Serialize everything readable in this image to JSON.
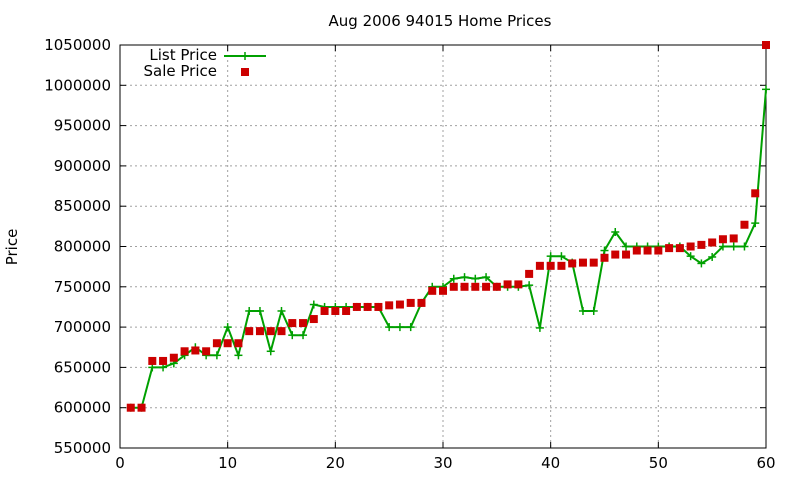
{
  "chart_data": {
    "type": "line",
    "title": "Aug 2006 94015 Home Prices",
    "xlabel": "",
    "ylabel": "Price",
    "xlim": [
      0,
      60
    ],
    "ylim": [
      550000,
      1050000
    ],
    "x_ticks": [
      0,
      10,
      20,
      30,
      40,
      50,
      60
    ],
    "y_ticks": [
      550000,
      600000,
      650000,
      700000,
      750000,
      800000,
      850000,
      900000,
      950000,
      1000000,
      1050000
    ],
    "grid": true,
    "legend_position": "top-left",
    "series": [
      {
        "name": "List Price",
        "style": "line-points",
        "marker": "plus",
        "color": "#00a000",
        "x": [
          1,
          2,
          3,
          4,
          5,
          6,
          7,
          8,
          9,
          10,
          11,
          12,
          13,
          14,
          15,
          16,
          17,
          18,
          19,
          20,
          21,
          22,
          23,
          24,
          25,
          26,
          27,
          28,
          29,
          30,
          31,
          32,
          33,
          34,
          35,
          36,
          37,
          38,
          39,
          40,
          41,
          42,
          43,
          44,
          45,
          46,
          47,
          48,
          49,
          50,
          51,
          52,
          53,
          54,
          55,
          56,
          57,
          58,
          59,
          60
        ],
        "y": [
          600000,
          600000,
          650000,
          650000,
          655000,
          665000,
          675000,
          665000,
          665000,
          700000,
          665000,
          720000,
          720000,
          670000,
          720000,
          690000,
          690000,
          728000,
          725000,
          725000,
          725000,
          725000,
          725000,
          725000,
          700000,
          700000,
          700000,
          730000,
          750000,
          750000,
          760000,
          762000,
          760000,
          762000,
          750000,
          750000,
          750000,
          752000,
          699000,
          788000,
          788000,
          780000,
          720000,
          720000,
          795000,
          818000,
          800000,
          800000,
          800000,
          800000,
          800000,
          800000,
          788000,
          779000,
          787000,
          800000,
          800000,
          800000,
          829000,
          995000
        ]
      },
      {
        "name": "Sale Price",
        "style": "points",
        "marker": "square",
        "color": "#cc0000",
        "x": [
          1,
          2,
          3,
          4,
          5,
          6,
          7,
          8,
          9,
          10,
          11,
          12,
          13,
          14,
          15,
          16,
          17,
          18,
          19,
          20,
          21,
          22,
          23,
          24,
          25,
          26,
          27,
          28,
          29,
          30,
          31,
          32,
          33,
          34,
          35,
          36,
          37,
          38,
          39,
          40,
          41,
          42,
          43,
          44,
          45,
          46,
          47,
          48,
          49,
          50,
          51,
          52,
          53,
          54,
          55,
          56,
          57,
          58,
          59,
          60
        ],
        "y": [
          600000,
          600000,
          658000,
          658000,
          662000,
          670000,
          671000,
          670000,
          680000,
          680000,
          680000,
          695000,
          695000,
          695000,
          695000,
          705000,
          705000,
          710000,
          720000,
          720000,
          720000,
          725000,
          725000,
          725000,
          727000,
          728000,
          730000,
          730000,
          745000,
          745000,
          750000,
          750000,
          750000,
          750000,
          750000,
          753000,
          753000,
          766000,
          776000,
          776000,
          776000,
          779000,
          780000,
          780000,
          786000,
          790000,
          790000,
          795000,
          795000,
          795000,
          798000,
          798000,
          800000,
          802000,
          805000,
          809000,
          810000,
          827000,
          866000,
          1050000
        ]
      }
    ]
  }
}
